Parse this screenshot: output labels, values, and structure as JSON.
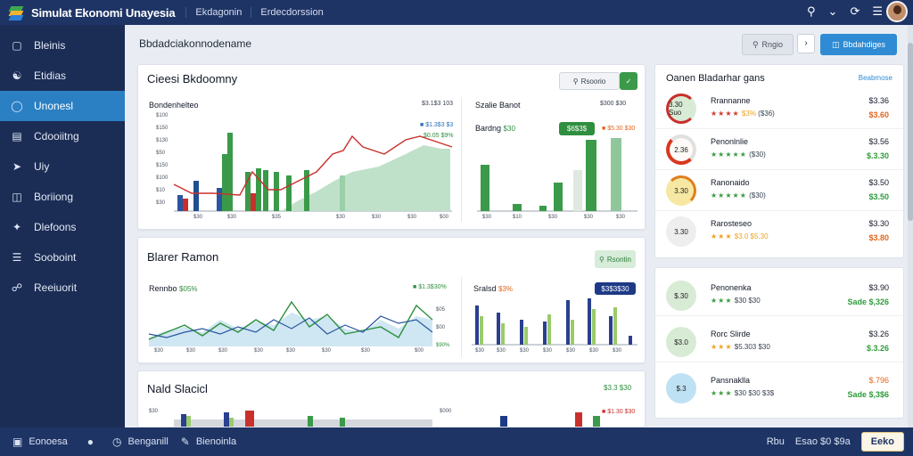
{
  "app": {
    "title": "Simulat Ekonomi Unayesia"
  },
  "top_tabs": [
    "Ekdagonin",
    "Erdecdorssion"
  ],
  "top_icons": [
    "search-icon",
    "chevron-down-icon",
    "refresh-icon",
    "menu-icon"
  ],
  "sidebar": {
    "items": [
      {
        "label": "Bleinis",
        "icon": "square-icon"
      },
      {
        "label": "Etidias",
        "icon": "people-icon"
      },
      {
        "label": "Unonesl",
        "icon": "chat-icon",
        "active": true
      },
      {
        "label": "Cdooiitng",
        "icon": "chart-icon"
      },
      {
        "label": "Uiy",
        "icon": "cursor-icon"
      },
      {
        "label": "Boriiong",
        "icon": "document-icon"
      },
      {
        "label": "Dlefoons",
        "icon": "gift-icon"
      },
      {
        "label": "Sooboint",
        "icon": "list-icon"
      },
      {
        "label": "Reeiuorit",
        "icon": "network-icon"
      }
    ]
  },
  "header": {
    "breadcrumb": "Bbdadciakonnodename",
    "search_button": "Rngio",
    "mini_button": "›",
    "primary_button": "Bbdahdiges"
  },
  "card_overview": {
    "title": "Cieesi Bkdoomny",
    "chip": "Rsoorio",
    "chart_a_title": "Bondenhelteo",
    "chart_a_val1": "$3.1$3 103",
    "chart_a_legend1": "$1.3$3 $3",
    "chart_a_legend2": "$0.05 $9%",
    "chart_a_yticks": [
      "$100",
      "$150",
      "$130",
      "$50",
      "$150",
      "$100",
      "$10",
      "$30"
    ],
    "chart_a_xticks": [
      "$30",
      "$30",
      "$35",
      "$30",
      "$30",
      "$30",
      "$00"
    ],
    "chart_b_title": "Szalie Banot",
    "chart_b_val1": "$300 $30",
    "chart_b_sub": "Bardng",
    "chart_b_sub_val": "$30",
    "chart_b_chip": "$6$3$",
    "chart_b_legend": "$5.30 $30",
    "chart_b_xticks": [
      "$30",
      "$10",
      "$30",
      "$30",
      "$30"
    ]
  },
  "card_trend": {
    "title": "Blarer Ramon",
    "chip": "Rsontin",
    "chart_a_title": "Rennbo",
    "chart_a_pct": "$05%",
    "chart_a_legend": "$1.3$30%",
    "chart_a_yticks": [
      "$05",
      "$00",
      "$90%"
    ],
    "chart_a_xticks": [
      "$30",
      "$30",
      "$30",
      "$30",
      "$30",
      "$30",
      "$30",
      "$00"
    ],
    "chart_b_title": "Sralsd",
    "chart_b_pct": "$3%",
    "chart_b_chip": "$3$3$30",
    "chart_b_xticks": [
      "$30",
      "$30",
      "$30",
      "$30",
      "$30",
      "$30",
      "$30"
    ]
  },
  "card_bottom": {
    "title": "Nald Slacicl",
    "link": "$3.3 $30",
    "y_left": "$30",
    "y_right": "$000",
    "legend": "$1.30 $30"
  },
  "right_panel_1": {
    "title": "Oanen Bladarhar gans",
    "link": "Beabmose",
    "rows": [
      {
        "disc": "3.30 Suo",
        "name": "Rrannanne",
        "stars": "★★★★",
        "star_color": "r",
        "pct": "$3%",
        "sub": "($36)",
        "v1": "$3.36",
        "v2": "$3.60",
        "v2_color": "o",
        "disc_color": "#d8ebd5",
        "ring": "#c9302c"
      },
      {
        "disc": "2.36",
        "name": "Penonlnlie",
        "stars": "★★★★★",
        "star_color": "g",
        "pct": "",
        "sub": "($30)",
        "v1": "$3.56",
        "v2": "$.3.30",
        "v2_color": "g",
        "disc_color": "#fdfaf7",
        "ring": "#d8381e"
      },
      {
        "disc": "3.30",
        "name": "Ranonaido",
        "stars": "★★★★★",
        "star_color": "g",
        "pct": "",
        "sub": "($30)",
        "v1": "$3.50",
        "v2": "$3.50",
        "v2_color": "g",
        "disc_color": "#f6e8a2",
        "ring": "#e07f1d"
      },
      {
        "disc": "3.30",
        "name": "Rarosteseo",
        "stars": "★★★",
        "star_color": "y",
        "pct": "",
        "sub": "$3.0 $5.30",
        "v1": "$3.30",
        "v2": "$3.80",
        "v2_color": "o",
        "disc_color": "#eeeeee",
        "ring": ""
      }
    ]
  },
  "right_panel_2": {
    "rows": [
      {
        "disc": "$.30",
        "name": "Penonenka",
        "stars": "★★★",
        "star_color": "g",
        "sub": "$30 $30",
        "v1": "$3.90",
        "v2": "Sade $,326",
        "v2_color": "g",
        "disc_color": "#d8ebd5"
      },
      {
        "disc": "$3.0",
        "name": "Rorc Slirde",
        "stars": "★★★",
        "star_color": "y",
        "sub": "$5.303 $30",
        "v1": "$3.26",
        "v2": "$.3.26",
        "v2_color": "g",
        "disc_color": "#d8ebd5"
      },
      {
        "disc": "$.3",
        "name": "Pansnaklla",
        "stars": "★★★",
        "star_color": "g",
        "sub": "$30 $30 $3$",
        "v1": "$.796",
        "v2": "Sade $,3$6",
        "v2_color": "g",
        "disc_color": "#bfe1f4",
        "v1_color": "o"
      }
    ]
  },
  "bottom_bar": {
    "items": [
      {
        "label": "Eonoesa",
        "icon": "stack-icon"
      },
      {
        "label": "Benganill",
        "icon": "circle-icon"
      },
      {
        "label": "Benganil",
        "icon": "clock-icon"
      },
      {
        "label": "Bienoinla",
        "icon": "pen-icon"
      }
    ],
    "right_texts": [
      "Rbu",
      "Esao $0 $9a"
    ],
    "button": "Eeko"
  },
  "colors": {
    "navy": "#1e3465",
    "sidebar": "#1b2d55",
    "accent_blue": "#2f8bd3",
    "green": "#2f8f3f",
    "red": "#c9302c",
    "orange": "#f0a31e"
  }
}
